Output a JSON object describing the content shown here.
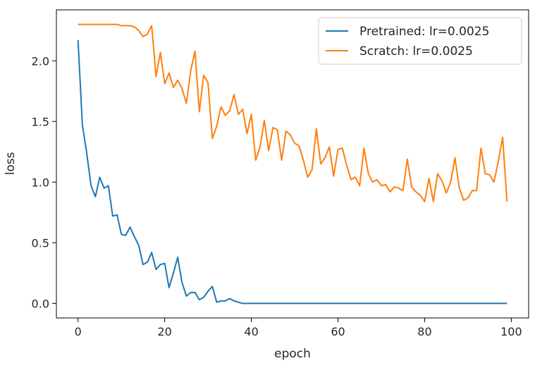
{
  "chart_data": {
    "type": "line",
    "title": "",
    "xlabel": "epoch",
    "ylabel": "loss",
    "xlim": [
      -5,
      104
    ],
    "ylim": [
      -0.12,
      2.42
    ],
    "xticks": [
      0,
      20,
      40,
      60,
      80,
      100
    ],
    "yticks": [
      0.0,
      0.5,
      1.0,
      1.5,
      2.0
    ],
    "xtick_labels": [
      "0",
      "20",
      "40",
      "60",
      "80",
      "100"
    ],
    "ytick_labels": [
      "0.0",
      "0.5",
      "1.0",
      "1.5",
      "2.0"
    ],
    "grid": false,
    "legend_position": "top-right",
    "series": [
      {
        "name": "Pretrained: lr=0.0025",
        "color": "#1f77b4",
        "x": [
          0,
          1,
          2,
          3,
          4,
          5,
          6,
          7,
          8,
          9,
          10,
          11,
          12,
          13,
          14,
          15,
          16,
          17,
          18,
          19,
          20,
          21,
          22,
          23,
          24,
          25,
          26,
          27,
          28,
          29,
          30,
          31,
          32,
          33,
          34,
          35,
          36,
          37,
          38,
          39,
          40,
          41,
          42,
          43,
          44,
          45,
          46,
          47,
          48,
          49,
          50,
          51,
          52,
          53,
          54,
          55,
          56,
          57,
          58,
          59,
          60,
          61,
          62,
          63,
          64,
          65,
          66,
          67,
          68,
          69,
          70,
          71,
          72,
          73,
          74,
          75,
          76,
          77,
          78,
          79,
          80,
          81,
          82,
          83,
          84,
          85,
          86,
          87,
          88,
          89,
          90,
          91,
          92,
          93,
          94,
          95,
          96,
          97,
          98,
          99
        ],
        "y": [
          2.17,
          1.47,
          1.24,
          0.97,
          0.88,
          1.04,
          0.95,
          0.97,
          0.72,
          0.73,
          0.57,
          0.56,
          0.63,
          0.55,
          0.48,
          0.32,
          0.34,
          0.42,
          0.28,
          0.32,
          0.33,
          0.13,
          0.25,
          0.38,
          0.17,
          0.06,
          0.09,
          0.09,
          0.03,
          0.05,
          0.1,
          0.14,
          0.01,
          0.02,
          0.02,
          0.04,
          0.02,
          0.01,
          0.0,
          0.0,
          0.0,
          0.0,
          0.0,
          0.0,
          0.0,
          0.0,
          0.0,
          0.0,
          0.0,
          0.0,
          0.0,
          0.0,
          0.0,
          0.0,
          0.0,
          0.0,
          0.0,
          0.0,
          0.0,
          0.0,
          0.0,
          0.0,
          0.0,
          0.0,
          0.0,
          0.0,
          0.0,
          0.0,
          0.0,
          0.0,
          0.0,
          0.0,
          0.0,
          0.0,
          0.0,
          0.0,
          0.0,
          0.0,
          0.0,
          0.0,
          0.0,
          0.0,
          0.0,
          0.0,
          0.0,
          0.0,
          0.0,
          0.0,
          0.0,
          0.0,
          0.0,
          0.0,
          0.0,
          0.0,
          0.0,
          0.0,
          0.0,
          0.0,
          0.0,
          0.0
        ]
      },
      {
        "name": "Scratch: lr=0.0025",
        "color": "#ff7f0e",
        "x": [
          0,
          1,
          2,
          3,
          4,
          5,
          6,
          7,
          8,
          9,
          10,
          11,
          12,
          13,
          14,
          15,
          16,
          17,
          18,
          19,
          20,
          21,
          22,
          23,
          24,
          25,
          26,
          27,
          28,
          29,
          30,
          31,
          32,
          33,
          34,
          35,
          36,
          37,
          38,
          39,
          40,
          41,
          42,
          43,
          44,
          45,
          46,
          47,
          48,
          49,
          50,
          51,
          52,
          53,
          54,
          55,
          56,
          57,
          58,
          59,
          60,
          61,
          62,
          63,
          64,
          65,
          66,
          67,
          68,
          69,
          70,
          71,
          72,
          73,
          74,
          75,
          76,
          77,
          78,
          79,
          80,
          81,
          82,
          83,
          84,
          85,
          86,
          87,
          88,
          89,
          90,
          91,
          92,
          93,
          94,
          95,
          96,
          97,
          98,
          99
        ],
        "y": [
          2.3,
          2.3,
          2.3,
          2.3,
          2.3,
          2.3,
          2.3,
          2.3,
          2.3,
          2.3,
          2.29,
          2.29,
          2.29,
          2.28,
          2.25,
          2.2,
          2.22,
          2.29,
          1.87,
          2.07,
          1.81,
          1.9,
          1.78,
          1.84,
          1.77,
          1.65,
          1.92,
          2.08,
          1.58,
          1.88,
          1.82,
          1.36,
          1.46,
          1.62,
          1.55,
          1.59,
          1.72,
          1.56,
          1.6,
          1.4,
          1.56,
          1.18,
          1.29,
          1.51,
          1.26,
          1.45,
          1.43,
          1.18,
          1.42,
          1.39,
          1.32,
          1.3,
          1.18,
          1.04,
          1.1,
          1.44,
          1.15,
          1.2,
          1.29,
          1.05,
          1.27,
          1.28,
          1.14,
          1.02,
          1.04,
          0.97,
          1.28,
          1.07,
          1.0,
          1.02,
          0.97,
          0.98,
          0.92,
          0.96,
          0.95,
          0.93,
          1.19,
          0.96,
          0.92,
          0.89,
          0.84,
          1.03,
          0.84,
          1.07,
          1.01,
          0.91,
          1.0,
          1.2,
          0.95,
          0.85,
          0.87,
          0.93,
          0.93,
          1.28,
          1.07,
          1.06,
          1.0,
          1.17,
          1.37,
          0.84
        ]
      }
    ]
  }
}
